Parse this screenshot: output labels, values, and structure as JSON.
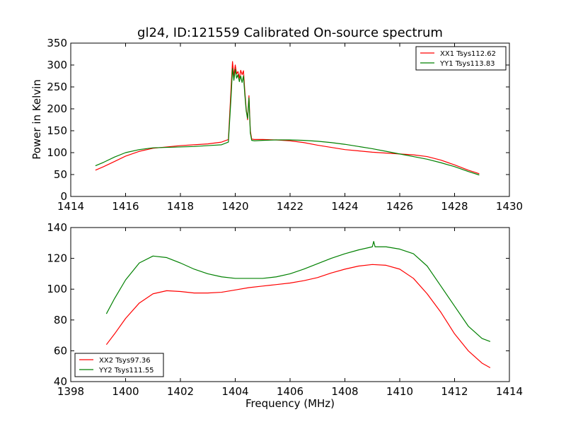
{
  "page": {
    "title": "gl24, ID:121559 Calibrated On-source spectrum"
  },
  "chart_data": [
    {
      "type": "line",
      "title": "gl24, ID:121559 Calibrated On-source spectrum",
      "xlabel": "",
      "ylabel": "Power in Kelvin",
      "xlim": [
        1414,
        1430
      ],
      "ylim": [
        0,
        350
      ],
      "xticks": [
        "1414",
        "1416",
        "1418",
        "1420",
        "1422",
        "1424",
        "1426",
        "1428",
        "1430"
      ],
      "yticks": [
        "0",
        "50",
        "100",
        "150",
        "200",
        "250",
        "300",
        "350"
      ],
      "legend_position": "top-right",
      "series": [
        {
          "name": "XX1 Tsys112.62",
          "color": "#ff0000",
          "x": [
            1414.9,
            1415.2,
            1415.6,
            1416.0,
            1416.5,
            1417.0,
            1417.5,
            1418.0,
            1418.5,
            1419.0,
            1419.5,
            1419.75,
            1419.85,
            1419.9,
            1419.95,
            1420.0,
            1420.05,
            1420.1,
            1420.15,
            1420.2,
            1420.25,
            1420.3,
            1420.35,
            1420.4,
            1420.45,
            1420.5,
            1420.55,
            1420.6,
            1420.7,
            1421.0,
            1421.5,
            1422.0,
            1422.5,
            1423.0,
            1423.5,
            1424.0,
            1424.5,
            1425.0,
            1425.5,
            1426.0,
            1426.5,
            1427.0,
            1427.5,
            1428.0,
            1428.5,
            1428.9
          ],
          "y": [
            60,
            68,
            80,
            92,
            103,
            110,
            113,
            116,
            118,
            120,
            124,
            130,
            250,
            308,
            275,
            300,
            280,
            285,
            270,
            288,
            278,
            287,
            240,
            200,
            175,
            230,
            150,
            131,
            130,
            130,
            129,
            127,
            123,
            117,
            112,
            107,
            104,
            101,
            99,
            97,
            95,
            91,
            83,
            72,
            60,
            52
          ]
        },
        {
          "name": "YY1 Tsys113.83",
          "color": "#008000",
          "x": [
            1414.9,
            1415.2,
            1415.6,
            1416.0,
            1416.5,
            1417.0,
            1417.5,
            1418.0,
            1418.5,
            1419.0,
            1419.5,
            1419.75,
            1419.85,
            1419.9,
            1419.95,
            1420.0,
            1420.05,
            1420.1,
            1420.15,
            1420.2,
            1420.25,
            1420.3,
            1420.35,
            1420.4,
            1420.45,
            1420.5,
            1420.55,
            1420.6,
            1420.7,
            1421.0,
            1421.5,
            1422.0,
            1422.5,
            1423.0,
            1423.5,
            1424.0,
            1424.5,
            1425.0,
            1425.5,
            1426.0,
            1426.5,
            1427.0,
            1427.5,
            1428.0,
            1428.5,
            1428.9
          ],
          "y": [
            70,
            78,
            90,
            100,
            107,
            111,
            112,
            113,
            114,
            116,
            118,
            124,
            230,
            292,
            265,
            290,
            270,
            278,
            262,
            275,
            260,
            275,
            232,
            195,
            178,
            225,
            145,
            128,
            127,
            128,
            129,
            129,
            128,
            126,
            123,
            119,
            114,
            109,
            103,
            97,
            91,
            85,
            77,
            68,
            57,
            49
          ]
        }
      ]
    },
    {
      "type": "line",
      "title": "",
      "xlabel": "Frequency (MHz)",
      "ylabel": "",
      "xlim": [
        1398,
        1414
      ],
      "ylim": [
        40,
        140
      ],
      "xticks": [
        "1398",
        "1400",
        "1402",
        "1404",
        "1406",
        "1408",
        "1410",
        "1412",
        "1414"
      ],
      "yticks": [
        "40",
        "60",
        "80",
        "100",
        "120",
        "140"
      ],
      "legend_position": "bottom-left",
      "series": [
        {
          "name": "XX2 Tsys97.36",
          "color": "#ff0000",
          "x": [
            1399.3,
            1399.6,
            1400.0,
            1400.5,
            1401.0,
            1401.5,
            1402.0,
            1402.5,
            1403.0,
            1403.5,
            1404.0,
            1404.5,
            1405.0,
            1405.5,
            1406.0,
            1406.5,
            1407.0,
            1407.5,
            1408.0,
            1408.5,
            1409.0,
            1409.5,
            1410.0,
            1410.5,
            1411.0,
            1411.5,
            1412.0,
            1412.5,
            1413.0,
            1413.3
          ],
          "y": [
            64,
            71,
            81,
            91,
            97,
            99,
            98.5,
            97.5,
            97.5,
            98,
            99.5,
            101,
            102,
            103,
            104,
            105.5,
            107.5,
            110.5,
            113,
            115,
            116,
            115.5,
            113,
            107,
            97,
            85,
            71,
            60,
            52,
            49
          ]
        },
        {
          "name": "YY2 Tsys111.55",
          "color": "#008000",
          "x": [
            1399.3,
            1399.6,
            1400.0,
            1400.5,
            1401.0,
            1401.5,
            1402.0,
            1402.5,
            1403.0,
            1403.5,
            1404.0,
            1404.5,
            1405.0,
            1405.5,
            1406.0,
            1406.5,
            1407.0,
            1407.5,
            1408.0,
            1408.5,
            1409.0,
            1409.05,
            1409.1,
            1409.5,
            1410.0,
            1410.5,
            1411.0,
            1411.5,
            1412.0,
            1412.5,
            1413.0,
            1413.3
          ],
          "y": [
            84,
            94,
            106,
            117,
            121.5,
            120.5,
            117,
            113,
            110,
            108,
            107,
            107,
            107,
            108,
            110,
            113,
            116.5,
            120,
            123,
            125.5,
            127.5,
            131,
            127.5,
            127.5,
            126,
            123,
            115,
            102,
            89,
            76,
            68,
            66
          ]
        }
      ]
    }
  ]
}
